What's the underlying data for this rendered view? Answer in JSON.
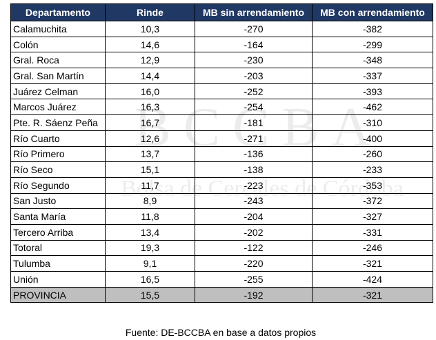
{
  "watermark": {
    "logo": "BCCBA",
    "name": "Bolsa de Cereales de Córdoba"
  },
  "table": {
    "header": [
      "Departamento",
      "Rinde",
      "MB sin arrendamiento",
      "MB con arrendamiento"
    ],
    "rows": [
      [
        "Calamuchita",
        "10,3",
        "-270",
        "-382"
      ],
      [
        "Colón",
        "14,6",
        "-164",
        "-299"
      ],
      [
        "Gral. Roca",
        "12,9",
        "-230",
        "-348"
      ],
      [
        "Gral. San Martín",
        "14,4",
        "-203",
        "-337"
      ],
      [
        "Juárez Celman",
        "16,0",
        "-252",
        "-393"
      ],
      [
        "Marcos Juárez",
        "16,3",
        "-254",
        "-462"
      ],
      [
        "Pte. R. Sáenz Peña",
        "16,7",
        "-181",
        "-310"
      ],
      [
        "Río Cuarto",
        "12,6",
        "-271",
        "-400"
      ],
      [
        "Río Primero",
        "13,7",
        "-136",
        "-260"
      ],
      [
        "Río Seco",
        "15,1",
        "-138",
        "-233"
      ],
      [
        "Río Segundo",
        "11,7",
        "-223",
        "-353"
      ],
      [
        "San Justo",
        "8,9",
        "-243",
        "-372"
      ],
      [
        "Santa María",
        "11,8",
        "-204",
        "-327"
      ],
      [
        "Tercero Arriba",
        "13,4",
        "-202",
        "-331"
      ],
      [
        "Totoral",
        "19,3",
        "-122",
        "-246"
      ],
      [
        "Tulumba",
        "9,1",
        "-220",
        "-321"
      ],
      [
        "Unión",
        "16,5",
        "-255",
        "-424"
      ]
    ],
    "total": [
      "PROVINCIA",
      "15,5",
      "-192",
      "-321"
    ]
  },
  "note": "Fuente: DE-BCCBA en base a datos propios"
}
